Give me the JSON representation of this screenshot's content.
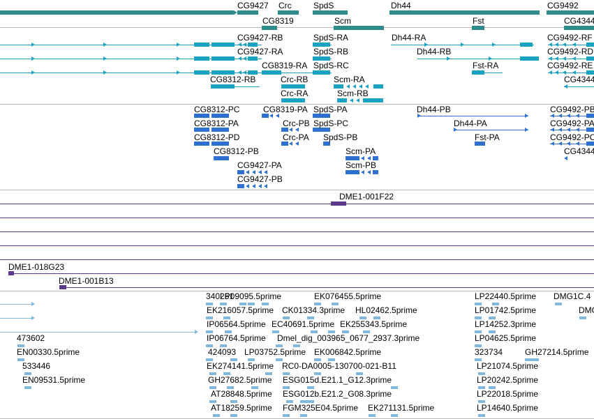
{
  "colors": {
    "gene": "#2e8b8b",
    "mrna": "#1aa3c1",
    "cds": "#2f6fd0",
    "clone": "#5a3a8c",
    "est": "#7fb7dd",
    "divider": "#b8b8b8"
  },
  "tracks": [
    {
      "name": "genes",
      "labels": [
        "CG9427",
        "Crc",
        "SpdS",
        "Dh44",
        "CG9492",
        "CG8319",
        "Scm",
        "Fst",
        "CG4344"
      ]
    },
    {
      "name": "transcripts",
      "labels": [
        "CG9427-RB",
        "SpdS-RA",
        "Dh44-RA",
        "CG9492-RF",
        "CG9427-RA",
        "SpdS-RB",
        "Dh44-RB",
        "CG9492-RD",
        "CG8319-RA",
        "SpdS-RC",
        "Fst-RA",
        "CG9492-RE",
        "CG8312-RB",
        "Crc-RB",
        "Scm-RA",
        "CG4344",
        "Crc-RA",
        "Scm-RB"
      ]
    },
    {
      "name": "cds",
      "labels": [
        "CG8312-PC",
        "CG8319-PA",
        "SpdS-PA",
        "Dh44-PB",
        "CG9492-PB",
        "CG8312-PA",
        "Crc-PB",
        "SpdS-PC",
        "Dh44-PA",
        "CG9492-PA",
        "CG8312-PD",
        "Crc-PA",
        "SpdS-PB",
        "Fst-PA",
        "CG9492-PC",
        "CG8312-PB",
        "Scm-PA",
        "CG4344",
        "CG9427-PA",
        "Scm-PB",
        "CG9427-PB"
      ]
    },
    {
      "name": "clones",
      "labels": [
        "DME1-001F22",
        "DME1-018G23",
        "DME1-001B13"
      ]
    },
    {
      "name": "ests",
      "labels": [
        "340261",
        "LP09095.5prime",
        "EK076455.5prime",
        "LP22440.5prime",
        "DMG1C.4",
        "EK216057.5prime",
        "CK01334.3prime",
        "HL02462.5prime",
        "LP01742.5prime",
        "DMG",
        "IP06564.5prime",
        "EC40691.5prime",
        "EK255343.5prime",
        "LP14252.3prime",
        "473602",
        "IP06764.5prime",
        "Dmel_dig_003965_0677_2937.3prime",
        "LP04625.5prime",
        "EN00330.5prime",
        "424093",
        "LP03752.5prime",
        "EK006842.5prime",
        "323734",
        "GH27214.5prime",
        "533446",
        "EK274141.5prime",
        "RC0-DA0005-130700-021-B11",
        "LP21074.5prime",
        "EN09531.5prime",
        "GH27682.5prime",
        "ESG015d.E21.1_G12.3prime",
        "LP20242.5prime",
        "AT28848.5prime",
        "ESG012b.E21.2_G08.3prime",
        "LP22018.5prime",
        "AT18259.5prime",
        "FGM325E04.5prime",
        "EK271131.5prime",
        "LP14640.5prime"
      ]
    }
  ]
}
